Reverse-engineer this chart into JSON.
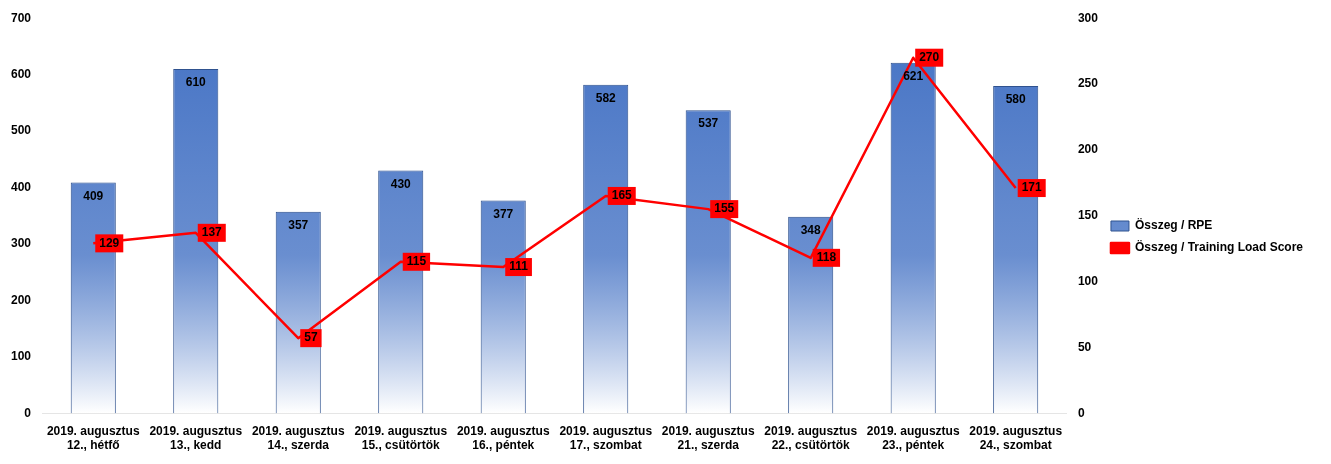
{
  "chart_data": {
    "type": "bar",
    "categories": [
      "2019. augusztus\n12., hétfő",
      "2019. augusztus\n13., kedd",
      "2019. augusztus\n14., szerda",
      "2019. augusztus\n15., csütörtök",
      "2019. augusztus\n16., péntek",
      "2019. augusztus\n17., szombat",
      "2019. augusztus\n21., szerda",
      "2019. augusztus\n22., csütörtök",
      "2019. augusztus\n23., péntek",
      "2019. augusztus\n24., szombat"
    ],
    "series": [
      {
        "name": "Összeg / RPE",
        "color": "#4472c4",
        "values": [
          409,
          610,
          357,
          430,
          377,
          582,
          537,
          348,
          621,
          580
        ]
      },
      {
        "name": "Összeg / Training Load Score",
        "type": "line",
        "axis": "y2",
        "color": "#ff0000",
        "values": [
          129,
          137,
          57,
          115,
          111,
          165,
          155,
          118,
          270,
          171
        ]
      }
    ],
    "ylim": [
      0,
      700
    ],
    "yticks": [
      0,
      100,
      200,
      300,
      400,
      500,
      600,
      700
    ],
    "y2lim": [
      0,
      300
    ],
    "y2ticks": [
      0,
      50,
      100,
      150,
      200,
      250,
      300
    ],
    "data_labels": true,
    "grid": false,
    "legend": "right",
    "marker": "none",
    "line_style": "solid"
  }
}
